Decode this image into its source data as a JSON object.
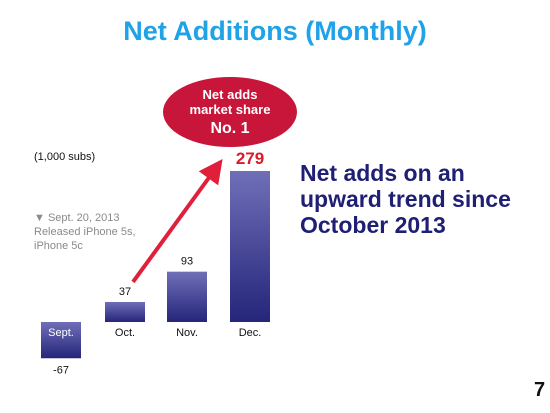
{
  "slide": {
    "title": "Net Additions (Monthly)",
    "units": "(1,000 subs)",
    "note_lines": [
      "▼ Sept. 20, 2013",
      "Released iPhone 5s,",
      "iPhone 5c"
    ],
    "badge_lines": [
      "Net adds",
      "market share",
      "No. 1"
    ],
    "message_lines": [
      "Net adds on an",
      "upward trend since",
      "October 2013"
    ],
    "page_number": "7"
  },
  "colors": {
    "title": "#1fa2e8",
    "bar_top": "#6f6fb8",
    "bar_bottom": "#25257a",
    "arrow": "#e0203a",
    "badge": "#c8163a",
    "highlight_value": "#d81a2a",
    "message": "#1f1f73"
  },
  "chart_data": {
    "type": "bar",
    "categories": [
      "Sept.",
      "Oct.",
      "Nov.",
      "Dec."
    ],
    "values": [
      -67,
      37,
      93,
      279
    ],
    "value_labels": [
      "-67",
      "37",
      "93",
      "279"
    ],
    "highlight_index": 3,
    "title": "",
    "xlabel": "",
    "ylabel": "(1,000 subs)",
    "grid": false,
    "annotations": [
      "▼ Sept. 20, 2013 Released iPhone 5s, iPhone 5c",
      "Net adds market share No. 1"
    ],
    "arrow": {
      "from_category": "Oct.",
      "to_category": "Dec."
    }
  }
}
